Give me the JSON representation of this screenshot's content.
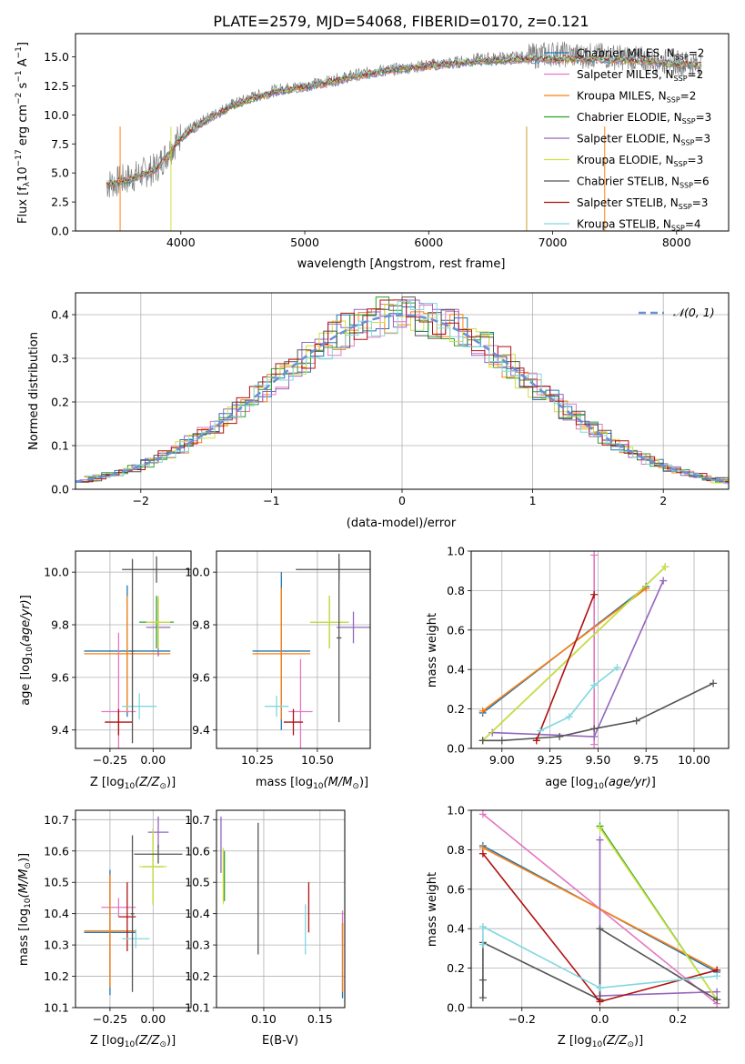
{
  "figure": {
    "title": "PLATE=2579, MJD=54068, FIBERID=0170, z=0.121"
  },
  "models": [
    {
      "label": "Chabrier MILES, N",
      "nssp": "=2",
      "color": "#1f77b4"
    },
    {
      "label": "Salpeter MILES, N",
      "nssp": "=2",
      "color": "#e377c2"
    },
    {
      "label": "Kroupa MILES, N",
      "nssp": "=2",
      "color": "#ff7f0e"
    },
    {
      "label": "Chabrier ELODIE, N",
      "nssp": "=3",
      "color": "#2ca02c"
    },
    {
      "label": "Salpeter ELODIE, N",
      "nssp": "=3",
      "color": "#9467bd"
    },
    {
      "label": "Kroupa ELODIE, N",
      "nssp": "=3",
      "color": "#d0e040"
    },
    {
      "label": "Chabrier STELIB, N",
      "nssp": "=6",
      "color": "#555555"
    },
    {
      "label": "Salpeter STELIB, N",
      "nssp": "=3",
      "color": "#b01010"
    },
    {
      "label": "Kroupa STELIB, N",
      "nssp": "=4",
      "color": "#80d8e0"
    }
  ],
  "chart_data": [
    {
      "id": "spectrum",
      "type": "line",
      "xlabel": "wavelength [Angstrom, rest frame]",
      "ylabel": "Flux [f",
      "xticks": [
        "4000",
        "5000",
        "6000",
        "7000",
        "8000"
      ],
      "yticks": [
        "0.0",
        "2.5",
        "5.0",
        "7.5",
        "10.0",
        "12.5",
        "15.0"
      ],
      "xlim": [
        3150,
        8420
      ],
      "ylim": [
        0,
        17
      ],
      "x": [
        3400,
        3600,
        3800,
        4000,
        4200,
        4400,
        4600,
        4800,
        5000,
        5200,
        5400,
        5600,
        5800,
        6000,
        6200,
        6400,
        6600,
        6800,
        7000,
        7200,
        7400,
        7600,
        7800,
        8000,
        8200
      ],
      "flux_data": [
        4.0,
        4.6,
        5.4,
        8.2,
        9.6,
        10.8,
        11.6,
        12.2,
        12.5,
        12.9,
        13.4,
        13.8,
        14.0,
        14.3,
        14.5,
        14.8,
        14.9,
        15.0,
        15.3,
        15.1,
        15.1,
        14.9,
        14.7,
        14.5,
        14.4
      ],
      "flux_model": [
        4.0,
        4.5,
        5.3,
        8.0,
        9.5,
        10.7,
        11.5,
        12.1,
        12.4,
        12.8,
        13.3,
        13.7,
        14.0,
        14.2,
        14.4,
        14.6,
        14.7,
        14.8,
        14.8,
        14.8,
        14.8,
        14.7,
        14.6,
        14.4,
        14.2
      ]
    },
    {
      "id": "residuals",
      "type": "line",
      "xlabel": "(data-model)/error",
      "ylabel": "Normed distribution",
      "xticks": [
        "−2",
        "−1",
        "0",
        "1",
        "2"
      ],
      "yticks": [
        "0.0",
        "0.1",
        "0.2",
        "0.3",
        "0.4"
      ],
      "xlim": [
        -2.5,
        2.5
      ],
      "ylim": [
        0,
        0.45
      ],
      "legend": "N(0,1)",
      "gauss_sigma": 1.0
    },
    {
      "id": "age-vs-Z",
      "type": "scatter",
      "xlabel": "Z [log",
      "ylabel": "age  [log",
      "xticks": [
        "−0.25",
        "0.00"
      ],
      "yticks": [
        "9.4",
        "9.6",
        "9.8",
        "10.0"
      ],
      "xlim": [
        -0.45,
        0.22
      ],
      "ylim": [
        9.33,
        10.08
      ],
      "points": [
        {
          "x": -0.15,
          "y": 9.7,
          "ex": 0.25,
          "ey": 0.25,
          "c": "#1f77b4"
        },
        {
          "x": -0.2,
          "y": 9.47,
          "ex": 0.1,
          "ey": 0.3,
          "c": "#e377c2"
        },
        {
          "x": -0.15,
          "y": 9.69,
          "ex": 0.25,
          "ey": 0.22,
          "c": "#ff7f0e"
        },
        {
          "x": 0.02,
          "y": 9.81,
          "ex": 0.1,
          "ey": 0.1,
          "c": "#2ca02c"
        },
        {
          "x": 0.03,
          "y": 9.79,
          "ex": 0.07,
          "ey": 0.11,
          "c": "#9467bd"
        },
        {
          "x": 0.03,
          "y": 9.81,
          "ex": 0.07,
          "ey": 0.1,
          "c": "#d0e040"
        },
        {
          "x": 0.02,
          "y": 10.01,
          "ex": 0.2,
          "ey": 0.05,
          "c": "#555555"
        },
        {
          "x": -0.2,
          "y": 9.43,
          "ex": 0.08,
          "ey": 0.05,
          "c": "#b01010"
        },
        {
          "x": -0.08,
          "y": 9.49,
          "ex": 0.1,
          "ey": 0.05,
          "c": "#80d8e0"
        },
        {
          "x": -0.12,
          "y": 9.7,
          "ex": 0.01,
          "ey": 0.35,
          "c": "#555555"
        }
      ]
    },
    {
      "id": "age-vs-mass",
      "type": "scatter",
      "xlabel": "mass [log",
      "ylabel": "",
      "xticks": [
        "10.25",
        "10.50"
      ],
      "yticks": [
        "9.4",
        "9.6",
        "9.8",
        "10.0"
      ],
      "xlim": [
        10.08,
        10.72
      ],
      "ylim": [
        9.33,
        10.08
      ],
      "points": [
        {
          "x": 10.35,
          "y": 9.7,
          "ex": 0.12,
          "ey": 0.3,
          "c": "#1f77b4"
        },
        {
          "x": 10.43,
          "y": 9.47,
          "ex": 0.05,
          "ey": 0.2,
          "c": "#e377c2"
        },
        {
          "x": 10.35,
          "y": 9.69,
          "ex": 0.12,
          "ey": 0.25,
          "c": "#ff7f0e"
        },
        {
          "x": 10.55,
          "y": 9.81,
          "ex": 0.08,
          "ey": 0.1,
          "c": "#2ca02c"
        },
        {
          "x": 10.65,
          "y": 9.79,
          "ex": 0.07,
          "ey": 0.06,
          "c": "#9467bd"
        },
        {
          "x": 10.55,
          "y": 9.81,
          "ex": 0.08,
          "ey": 0.1,
          "c": "#d0e040"
        },
        {
          "x": 10.59,
          "y": 10.01,
          "ex": 0.18,
          "ey": 0.04,
          "c": "#555555"
        },
        {
          "x": 10.4,
          "y": 9.43,
          "ex": 0.04,
          "ey": 0.05,
          "c": "#b01010"
        },
        {
          "x": 10.33,
          "y": 9.49,
          "ex": 0.05,
          "ey": 0.04,
          "c": "#80d8e0"
        },
        {
          "x": 10.59,
          "y": 9.75,
          "ex": 0.01,
          "ey": 0.32,
          "c": "#555555"
        }
      ]
    },
    {
      "id": "weight-vs-age",
      "type": "line",
      "xlabel": "age  [log",
      "ylabel": "mass weight",
      "xticks": [
        "9.00",
        "9.25",
        "9.50",
        "9.75",
        "10.00"
      ],
      "yticks": [
        "0.0",
        "0.2",
        "0.4",
        "0.6",
        "0.8",
        "1.0"
      ],
      "xlim": [
        8.84,
        10.18
      ],
      "ylim": [
        0,
        1
      ],
      "series": [
        {
          "c": "#1f77b4",
          "x": [
            8.9,
            9.75
          ],
          "y": [
            0.18,
            0.82
          ]
        },
        {
          "c": "#e377c2",
          "x": [
            9.48,
            9.48
          ],
          "y": [
            0.02,
            0.98
          ]
        },
        {
          "c": "#ff7f0e",
          "x": [
            8.9,
            9.75
          ],
          "y": [
            0.19,
            0.81
          ]
        },
        {
          "c": "#2ca02c",
          "x": [
            8.9,
            9.85
          ],
          "y": [
            0.04,
            0.92
          ]
        },
        {
          "c": "#9467bd",
          "x": [
            8.95,
            9.48,
            9.84
          ],
          "y": [
            0.08,
            0.06,
            0.85
          ]
        },
        {
          "c": "#d0e040",
          "x": [
            8.9,
            9.85
          ],
          "y": [
            0.04,
            0.92
          ]
        },
        {
          "c": "#555555",
          "x": [
            8.9,
            9.0,
            9.3,
            9.48,
            9.7,
            10.1
          ],
          "y": [
            0.04,
            0.04,
            0.06,
            0.1,
            0.14,
            0.33
          ]
        },
        {
          "c": "#b01010",
          "x": [
            9.18,
            9.48
          ],
          "y": [
            0.04,
            0.78
          ]
        },
        {
          "c": "#80d8e0",
          "x": [
            9.2,
            9.35,
            9.48,
            9.6
          ],
          "y": [
            0.09,
            0.16,
            0.32,
            0.41
          ]
        }
      ]
    },
    {
      "id": "mass-vs-Z",
      "type": "scatter",
      "xlabel": "Z [log",
      "ylabel": "mass [log",
      "xticks": [
        "−0.25",
        "0.00"
      ],
      "yticks": [
        "10.1",
        "10.2",
        "10.3",
        "10.4",
        "10.5",
        "10.6",
        "10.7"
      ],
      "xlim": [
        -0.45,
        0.22
      ],
      "ylim": [
        10.1,
        10.73
      ],
      "points": [
        {
          "x": -0.25,
          "y": 10.34,
          "ex": 0.15,
          "ey": 0.2,
          "c": "#1f77b4"
        },
        {
          "x": -0.2,
          "y": 10.42,
          "ex": 0.1,
          "ey": 0.03,
          "c": "#e377c2"
        },
        {
          "x": -0.25,
          "y": 10.345,
          "ex": 0.15,
          "ey": 0.18,
          "c": "#ff7f0e"
        },
        {
          "x": 0.0,
          "y": 10.55,
          "ex": 0.06,
          "ey": 0.12,
          "c": "#2ca02c"
        },
        {
          "x": 0.03,
          "y": 10.66,
          "ex": 0.06,
          "ey": 0.05,
          "c": "#9467bd"
        },
        {
          "x": 0.0,
          "y": 10.55,
          "ex": 0.08,
          "ey": 0.12,
          "c": "#d0e040"
        },
        {
          "x": 0.03,
          "y": 10.59,
          "ex": 0.14,
          "ey": 0.03,
          "c": "#555555"
        },
        {
          "x": -0.15,
          "y": 10.39,
          "ex": 0.05,
          "ey": 0.11,
          "c": "#b01010"
        },
        {
          "x": -0.1,
          "y": 10.32,
          "ex": 0.08,
          "ey": 0.03,
          "c": "#80d8e0"
        },
        {
          "x": -0.12,
          "y": 10.4,
          "ex": 0.01,
          "ey": 0.25,
          "c": "#555555"
        }
      ]
    },
    {
      "id": "mass-vs-ebv",
      "type": "scatter",
      "xlabel": "E(B-V)",
      "ylabel": "",
      "xticks": [
        "0.10",
        "0.15"
      ],
      "yticks": [
        "10.1",
        "10.2",
        "10.3",
        "10.4",
        "10.5",
        "10.6",
        "10.7"
      ],
      "xlim": [
        0.058,
        0.172
      ],
      "ylim": [
        10.1,
        10.73
      ],
      "points": [
        {
          "x": 0.17,
          "y": 10.25,
          "ex": 0,
          "ey": 0.12,
          "c": "#1f77b4"
        },
        {
          "x": 0.17,
          "y": 10.36,
          "ex": 0,
          "ey": 0.05,
          "c": "#e377c2"
        },
        {
          "x": 0.17,
          "y": 10.26,
          "ex": 0,
          "ey": 0.11,
          "c": "#ff7f0e"
        },
        {
          "x": 0.065,
          "y": 10.52,
          "ex": 0,
          "ey": 0.08,
          "c": "#2ca02c"
        },
        {
          "x": 0.062,
          "y": 10.62,
          "ex": 0,
          "ey": 0.09,
          "c": "#9467bd"
        },
        {
          "x": 0.064,
          "y": 10.52,
          "ex": 0,
          "ey": 0.09,
          "c": "#d0e040"
        },
        {
          "x": 0.095,
          "y": 10.48,
          "ex": 0,
          "ey": 0.21,
          "c": "#555555"
        },
        {
          "x": 0.14,
          "y": 10.42,
          "ex": 0,
          "ey": 0.08,
          "c": "#b01010"
        },
        {
          "x": 0.137,
          "y": 10.35,
          "ex": 0,
          "ey": 0.08,
          "c": "#80d8e0"
        }
      ]
    },
    {
      "id": "weight-vs-Z",
      "type": "line",
      "xlabel": "Z [log",
      "ylabel": "mass weight",
      "xticks": [
        "−0.2",
        "0.0",
        "0.2"
      ],
      "yticks": [
        "0.0",
        "0.2",
        "0.4",
        "0.6",
        "0.8",
        "1.0"
      ],
      "xlim": [
        -0.33,
        0.33
      ],
      "ylim": [
        0,
        1
      ],
      "series": [
        {
          "c": "#1f77b4",
          "x": [
            -0.3,
            0.3
          ],
          "y": [
            0.82,
            0.18
          ]
        },
        {
          "c": "#e377c2",
          "x": [
            -0.3,
            0.3
          ],
          "y": [
            0.98,
            0.02
          ]
        },
        {
          "c": "#ff7f0e",
          "x": [
            -0.3,
            0.3
          ],
          "y": [
            0.81,
            0.19
          ]
        },
        {
          "c": "#2ca02c",
          "x": [
            0.0,
            0.3
          ],
          "y": [
            0.92,
            0.04
          ]
        },
        {
          "c": "#9467bd",
          "x": [
            0.0,
            0.0,
            0.3
          ],
          "y": [
            0.85,
            0.06,
            0.08
          ]
        },
        {
          "c": "#d0e040",
          "x": [
            0.0,
            0.3
          ],
          "y": [
            0.91,
            0.04
          ]
        },
        {
          "c": "#555555",
          "x": [
            -0.3,
            -0.3,
            -0.3,
            0.0,
            0.0,
            0.3
          ],
          "y": [
            0.05,
            0.14,
            0.33,
            0.04,
            0.4,
            0.04
          ]
        },
        {
          "c": "#b01010",
          "x": [
            -0.3,
            0.0,
            0.3
          ],
          "y": [
            0.78,
            0.03,
            0.19
          ]
        },
        {
          "c": "#80d8e0",
          "x": [
            -0.3,
            -0.3,
            0.0,
            0.3
          ],
          "y": [
            0.32,
            0.41,
            0.1,
            0.16
          ]
        }
      ]
    }
  ]
}
